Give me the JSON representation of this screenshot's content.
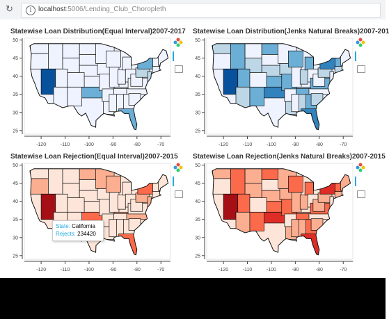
{
  "browser": {
    "url_host": "localhost",
    "url_rest": ":5006/Lending_Club_Choropleth"
  },
  "plots": [
    {
      "title": "Statewise Loan Distribution(Equal Interval)2007-2017",
      "palette": "blues",
      "mode": "equal"
    },
    {
      "title": "Statewise Loan Distribution(Jenks Natural Breaks)2007-201",
      "palette": "blues",
      "mode": "jenks"
    },
    {
      "title": "Statewise Loan Rejection(Equal Interval)2007-2015",
      "palette": "reds",
      "mode": "equal"
    },
    {
      "title": "Statewise Loan Rejection(Jenks Natural Breaks)2007-2015",
      "palette": "reds",
      "mode": "jenks"
    }
  ],
  "axes": {
    "x_ticks": [
      "-120",
      "-110",
      "-100",
      "-90",
      "-80",
      "-70"
    ],
    "y_ticks": [
      "50",
      "45",
      "40",
      "35",
      "30",
      "25"
    ]
  },
  "tooltip": {
    "state_label": "State:",
    "state_value": "California",
    "rejects_label": "Rejects:",
    "rejects_value": "234420"
  },
  "colors": {
    "blue_scale": [
      "#eff3ff",
      "#bdd7e7",
      "#6baed6",
      "#3182bd",
      "#08519c"
    ],
    "red_scale": [
      "#fee5d9",
      "#fcae91",
      "#fb6a4a",
      "#de2d26",
      "#a50f15"
    ]
  }
}
